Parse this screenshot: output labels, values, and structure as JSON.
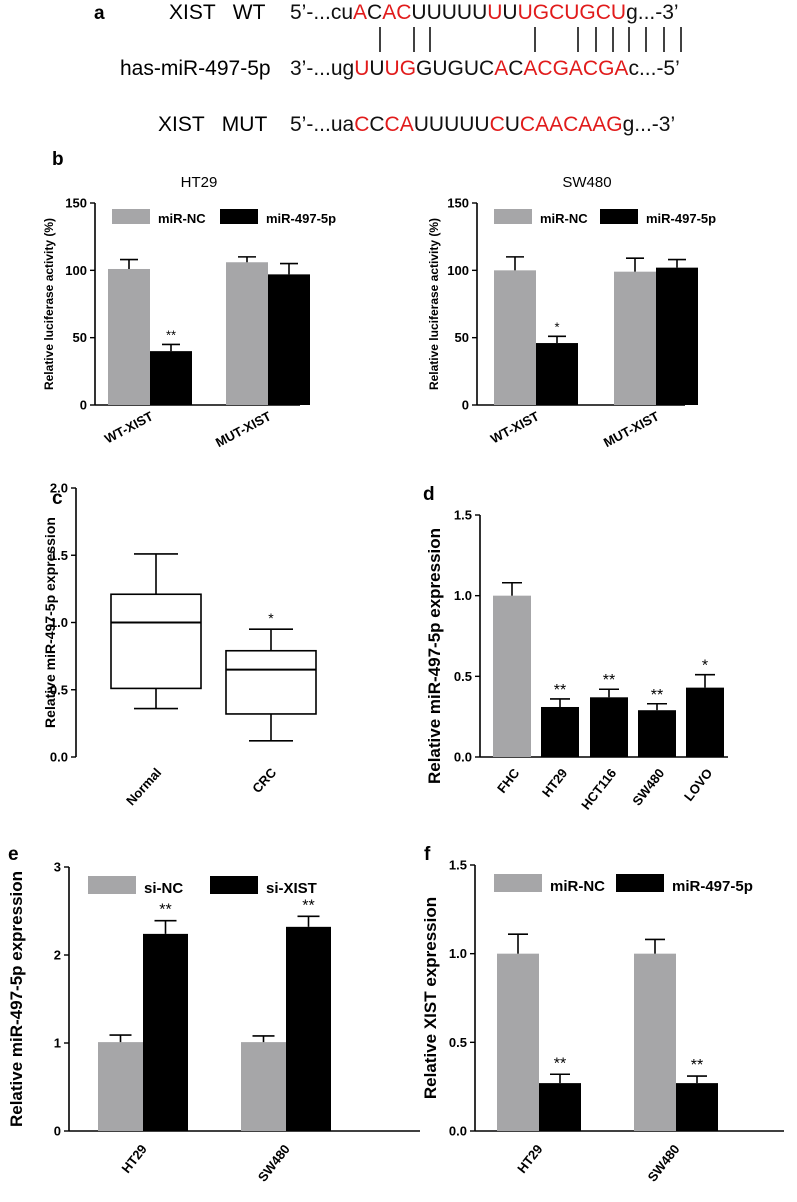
{
  "colors": {
    "gray": "#a6a6a8",
    "black": "#000000",
    "red": "#e11b1b"
  },
  "sequences": {
    "letter": "a",
    "wt_label": "XIST   WT",
    "mir_label": "has-miR-497-5p",
    "mut_label": "XIST   MUT",
    "wt_segments": [
      {
        "t": "5’-...cu",
        "r": false
      },
      {
        "t": "A",
        "r": true
      },
      {
        "t": "C",
        "r": false
      },
      {
        "t": "AC",
        "r": true
      },
      {
        "t": "UUUUU",
        "r": false
      },
      {
        "t": "U",
        "r": true
      },
      {
        "t": "U",
        "r": false
      },
      {
        "t": "UGCUGCU",
        "r": true
      },
      {
        "t": "g...-3’",
        "r": false
      }
    ],
    "mir_segments": [
      {
        "t": "3’-...ug",
        "r": false
      },
      {
        "t": "U",
        "r": true
      },
      {
        "t": "U",
        "r": false
      },
      {
        "t": "UG",
        "r": true
      },
      {
        "t": "GUGUC",
        "r": false
      },
      {
        "t": "A",
        "r": true
      },
      {
        "t": "C",
        "r": false
      },
      {
        "t": "ACGACGA",
        "r": true
      },
      {
        "t": "c...-5’",
        "r": false
      }
    ],
    "mut_segments": [
      {
        "t": "5’-...ua",
        "r": false
      },
      {
        "t": "C",
        "r": true
      },
      {
        "t": "C",
        "r": false
      },
      {
        "t": "CA",
        "r": true
      },
      {
        "t": "UUUUU",
        "r": false
      },
      {
        "t": "C",
        "r": true
      },
      {
        "t": "U",
        "r": false
      },
      {
        "t": "CAACAAG",
        "r": true
      },
      {
        "t": "g...-3’",
        "r": false
      }
    ]
  },
  "chart_data": [
    {
      "id": "b1",
      "letter": "b",
      "type": "bar",
      "title": "HT29",
      "ylabel": "Relative luciferase activity (%)",
      "ylim": [
        0,
        150
      ],
      "yticks": [
        0,
        50,
        100,
        150
      ],
      "categories": [
        "WT-XIST",
        "MUT-XIST"
      ],
      "series": [
        {
          "name": "miR-NC",
          "color": "gray",
          "values": [
            101,
            106
          ],
          "errors": [
            7,
            4
          ]
        },
        {
          "name": "miR-497-5p",
          "color": "black",
          "values": [
            40,
            97
          ],
          "errors": [
            5,
            8
          ]
        }
      ],
      "annotations": [
        {
          "series": 1,
          "cat": 0,
          "text": "**"
        }
      ]
    },
    {
      "id": "b2",
      "type": "bar",
      "title": "SW480",
      "ylabel": "Relative luciferase activity (%)",
      "ylim": [
        0,
        150
      ],
      "yticks": [
        0,
        50,
        100,
        150
      ],
      "categories": [
        "WT-XIST",
        "MUT-XIST"
      ],
      "series": [
        {
          "name": "miR-NC",
          "color": "gray",
          "values": [
            100,
            99
          ],
          "errors": [
            10,
            10
          ]
        },
        {
          "name": "miR-497-5p",
          "color": "black",
          "values": [
            46,
            102
          ],
          "errors": [
            5,
            6
          ]
        }
      ],
      "annotations": [
        {
          "series": 1,
          "cat": 0,
          "text": "*"
        }
      ]
    },
    {
      "id": "c",
      "letter": "c",
      "type": "box",
      "ylabel": "Relative miR-497-5p expression",
      "ylim": [
        0,
        2.0
      ],
      "yticks": [
        "0.0",
        "0.5",
        "1.0",
        "1.5",
        "2.0"
      ],
      "categories": [
        "Normal",
        "CRC"
      ],
      "boxes": [
        {
          "min": 0.36,
          "q1": 0.51,
          "median": 1.0,
          "q3": 1.21,
          "max": 1.51
        },
        {
          "min": 0.12,
          "q1": 0.32,
          "median": 0.65,
          "q3": 0.79,
          "max": 0.95
        }
      ],
      "annotations": [
        {
          "cat": 1,
          "text": "*"
        }
      ]
    },
    {
      "id": "d",
      "letter": "d",
      "type": "bar",
      "ylabel": "Relative miR-497-5p expression",
      "ylim": [
        0,
        1.5
      ],
      "yticks": [
        "0.0",
        "0.5",
        "1.0",
        "1.5"
      ],
      "categories": [
        "FHC",
        "HT29",
        "HCT116",
        "SW480",
        "LOVO"
      ],
      "values": [
        1.0,
        0.31,
        0.37,
        0.29,
        0.43
      ],
      "errors": [
        0.08,
        0.05,
        0.05,
        0.04,
        0.08
      ],
      "colors": [
        "gray",
        "black",
        "black",
        "black",
        "black"
      ],
      "annotations": [
        "",
        "**",
        "**",
        "**",
        "*"
      ]
    },
    {
      "id": "e",
      "letter": "e",
      "type": "bar",
      "ylabel": "Relative miR-497-5p expression",
      "ylim": [
        0,
        3
      ],
      "yticks": [
        0,
        1,
        2,
        3
      ],
      "categories": [
        "HT29",
        "SW480"
      ],
      "series": [
        {
          "name": "si-NC",
          "color": "gray",
          "values": [
            1.01,
            1.01
          ],
          "errors": [
            0.08,
            0.07
          ]
        },
        {
          "name": "si-XIST",
          "color": "black",
          "values": [
            2.24,
            2.32
          ],
          "errors": [
            0.15,
            0.12
          ]
        }
      ],
      "annotations": [
        {
          "series": 1,
          "cat": 0,
          "text": "**"
        },
        {
          "series": 1,
          "cat": 1,
          "text": "**"
        }
      ]
    },
    {
      "id": "f",
      "letter": "f",
      "type": "bar",
      "ylabel": "Relative XIST expression",
      "ylim": [
        0,
        1.5
      ],
      "yticks": [
        "0.0",
        "0.5",
        "1.0",
        "1.5"
      ],
      "categories": [
        "HT29",
        "SW480"
      ],
      "series": [
        {
          "name": "miR-NC",
          "color": "gray",
          "values": [
            1.0,
            1.0
          ],
          "errors": [
            0.11,
            0.08
          ]
        },
        {
          "name": "miR-497-5p",
          "color": "black",
          "values": [
            0.27,
            0.27
          ],
          "errors": [
            0.05,
            0.04
          ]
        }
      ],
      "annotations": [
        {
          "series": 1,
          "cat": 0,
          "text": "**"
        },
        {
          "series": 1,
          "cat": 1,
          "text": "**"
        }
      ]
    }
  ]
}
